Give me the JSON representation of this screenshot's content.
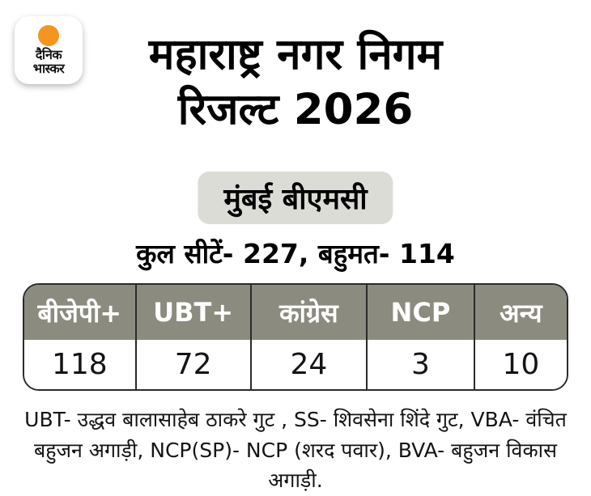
{
  "colors": {
    "background": "#ffffff",
    "table_header_bg": "#8b8b80",
    "table_border": "#2b2b2b",
    "badge_bg": "#dcdcd7",
    "logo_orange": "#f5941e",
    "text": "#000000"
  },
  "logo": {
    "line1": "दैनिक",
    "line2": "भास्कर"
  },
  "title": {
    "line1": "महाराष्ट्र नगर निगम",
    "line2": "रिजल्ट 2026"
  },
  "badge": {
    "label": "मुंबई बीएमसी"
  },
  "summary": {
    "label": "कुल सीटें- 227, बहुमत- 114",
    "total_seats": 227,
    "majority": 114
  },
  "chart_data": {
    "type": "table",
    "title": "महाराष्ट्र नगर निगम रिजल्ट 2026",
    "subtitle": "मुंबई बीएमसी",
    "total_seats": 227,
    "majority": 114,
    "columns": [
      "बीजेपी+",
      "UBT+",
      "कांग्रेस",
      "NCP",
      "अन्य"
    ],
    "values": [
      118,
      72,
      24,
      3,
      10
    ]
  },
  "footnote": {
    "line1": "UBT- उद्धव बालासाहेब ठाकरे गुट , SS- शिवसेना शिंदे गुट, VBA- वंचित",
    "line2": "बहुजन अगाड़ी, NCP(SP)- NCP (शरद पवार), BVA- बहुजन विकास अगाड़ी."
  }
}
